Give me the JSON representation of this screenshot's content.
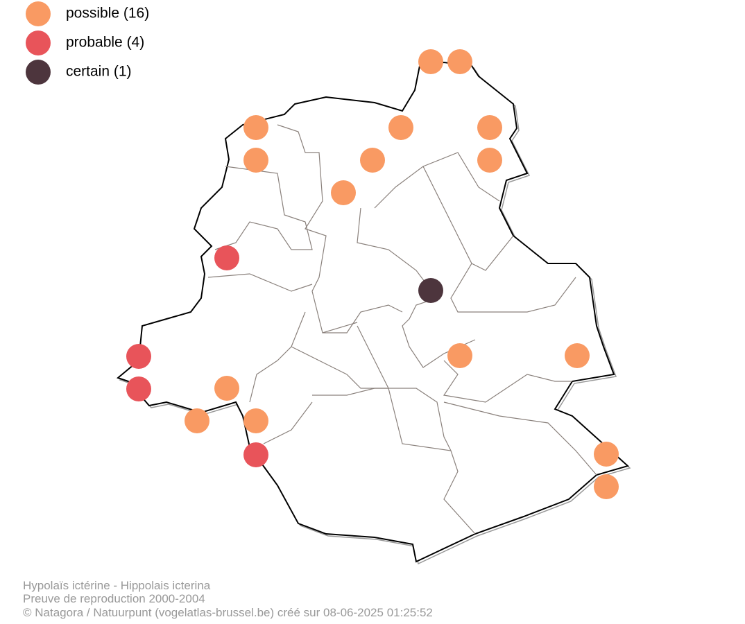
{
  "legend": [
    {
      "label": "possible (16)"
    },
    {
      "label": "probable (4)"
    },
    {
      "label": "certain (1)"
    }
  ],
  "footer": [
    "Hypolaïs ictérine - Hippolais icterina",
    "Preuve de reproduction 2000-2004",
    "© Natagora / Natuurpunt (vogelatlas-brussel.be) créé sur 08-06-2025 01:25:52"
  ]
}
